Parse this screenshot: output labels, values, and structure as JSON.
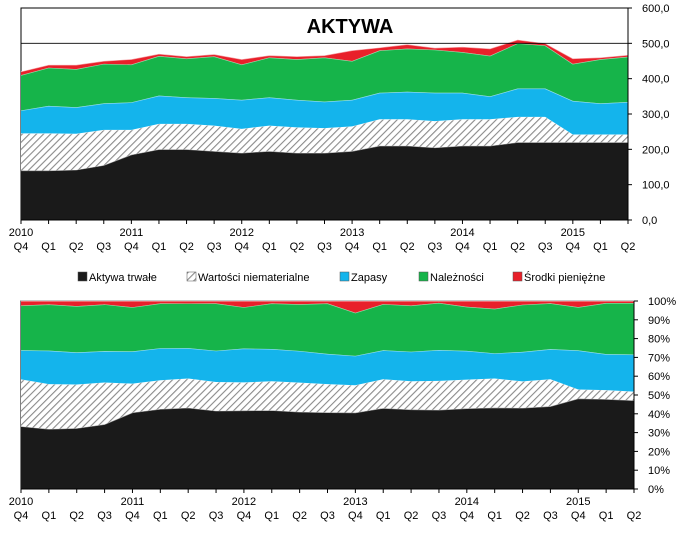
{
  "chart_data": [
    {
      "type": "area",
      "stacked": true,
      "title": "AKTYWA",
      "y_axis_side": "right",
      "ylim": [
        0,
        600
      ],
      "yticks": [
        "0,0",
        "100,0",
        "200,0",
        "300,0",
        "400,0",
        "500,0",
        "600,0"
      ],
      "reference_line": 500,
      "grid": false,
      "x_quarters": [
        "Q4",
        "Q1",
        "Q2",
        "Q3",
        "Q4",
        "Q1",
        "Q2",
        "Q3",
        "Q4",
        "Q1",
        "Q2",
        "Q3",
        "Q4",
        "Q1",
        "Q2",
        "Q3",
        "Q4",
        "Q1",
        "Q2",
        "Q3",
        "Q4",
        "Q1",
        "Q2"
      ],
      "x_years": [
        {
          "label": "2010",
          "index": 0
        },
        {
          "label": "2011",
          "index": 4
        },
        {
          "label": "2012",
          "index": 8
        },
        {
          "label": "2013",
          "index": 12
        },
        {
          "label": "2014",
          "index": 16
        },
        {
          "label": "2015",
          "index": 20
        }
      ],
      "series": [
        {
          "name": "Aktywa trwałe",
          "color": "#1a1a1a",
          "pattern": "solid",
          "values": [
            140,
            140,
            142,
            155,
            185,
            200,
            200,
            195,
            190,
            195,
            190,
            190,
            195,
            210,
            210,
            205,
            210,
            210,
            220,
            220,
            220,
            220,
            220
          ]
        },
        {
          "name": "Wartości niematerialne",
          "color": "#c8c8c8",
          "pattern": "hatch",
          "values": [
            105,
            105,
            102,
            100,
            70,
            72,
            72,
            72,
            68,
            72,
            72,
            70,
            70,
            75,
            75,
            75,
            75,
            75,
            72,
            72,
            22,
            22,
            22
          ]
        },
        {
          "name": "Zapasy",
          "color": "#14b4ec",
          "pattern": "solid",
          "values": [
            65,
            78,
            75,
            75,
            78,
            80,
            75,
            78,
            82,
            80,
            78,
            75,
            75,
            75,
            78,
            80,
            75,
            65,
            80,
            80,
            95,
            88,
            92
          ]
        },
        {
          "name": "Należności",
          "color": "#16b44a",
          "pattern": "solid",
          "values": [
            100,
            108,
            108,
            112,
            107,
            112,
            110,
            118,
            100,
            113,
            115,
            125,
            110,
            120,
            122,
            122,
            115,
            115,
            128,
            122,
            105,
            125,
            128
          ]
        },
        {
          "name": "Środki pieniężne",
          "color": "#e8202a",
          "pattern": "solid",
          "values": [
            10,
            8,
            12,
            8,
            15,
            6,
            6,
            6,
            15,
            6,
            8,
            6,
            30,
            8,
            12,
            5,
            15,
            20,
            10,
            6,
            15,
            5,
            5
          ]
        }
      ]
    },
    {
      "type": "area",
      "stacked": true,
      "normalized": true,
      "y_axis_side": "right",
      "ylim": [
        0,
        100
      ],
      "yticks": [
        "0%",
        "10%",
        "20%",
        "30%",
        "40%",
        "50%",
        "60%",
        "70%",
        "80%",
        "90%",
        "100%"
      ],
      "grid": false,
      "x_quarters": [
        "Q4",
        "Q1",
        "Q2",
        "Q3",
        "Q4",
        "Q1",
        "Q2",
        "Q3",
        "Q4",
        "Q1",
        "Q2",
        "Q3",
        "Q4",
        "Q1",
        "Q2",
        "Q3",
        "Q4",
        "Q1",
        "Q2",
        "Q3",
        "Q4",
        "Q1",
        "Q2"
      ],
      "x_years": [
        {
          "label": "2010",
          "index": 0
        },
        {
          "label": "2011",
          "index": 4
        },
        {
          "label": "2012",
          "index": 8
        },
        {
          "label": "2013",
          "index": 12
        },
        {
          "label": "2014",
          "index": 16
        },
        {
          "label": "2015",
          "index": 20
        }
      ],
      "series_ref": "same as first chart, percent of total"
    }
  ]
}
